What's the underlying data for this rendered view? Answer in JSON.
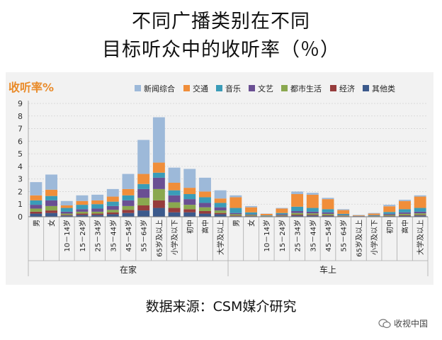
{
  "title_line1": "不同广播类别在不同",
  "title_line2": "目标听众中的收听率（％）",
  "source": "数据来源：CSM媒介研究",
  "watermark": "收视中国",
  "chart_data": {
    "type": "bar",
    "stacked": true,
    "ylabel": "收听率%",
    "ylim": [
      0,
      9
    ],
    "yticks": [
      0,
      1,
      2,
      3,
      4,
      5,
      6,
      7,
      8,
      9
    ],
    "grid": true,
    "legend_position": "top",
    "categories": [
      "男",
      "女",
      "10－14岁",
      "15－24岁",
      "25－34岁",
      "35－44岁",
      "45－54岁",
      "55－64岁",
      "65岁及以上",
      "小学及以下",
      "初中",
      "高中",
      "大学及以上",
      "男",
      "女",
      "10－14岁",
      "15－24岁",
      "25－34岁",
      "35－44岁",
      "45－54岁",
      "55－64岁",
      "65岁及以上",
      "小学及以下",
      "初中",
      "高中",
      "大学及以上"
    ],
    "groups": [
      {
        "label": "在家",
        "start": 0,
        "end": 12
      },
      {
        "label": "车上",
        "start": 13,
        "end": 25
      }
    ],
    "series": [
      {
        "name": "其他类",
        "color": "#3c5a8c",
        "values": [
          0.25,
          0.3,
          0.1,
          0.15,
          0.15,
          0.2,
          0.3,
          0.5,
          0.7,
          0.35,
          0.35,
          0.25,
          0.2,
          0.05,
          0.05,
          0.02,
          0.05,
          0.1,
          0.1,
          0.08,
          0.03,
          0.01,
          0.02,
          0.05,
          0.08,
          0.1
        ]
      },
      {
        "name": "经济",
        "color": "#963c3c",
        "values": [
          0.15,
          0.2,
          0.05,
          0.1,
          0.1,
          0.15,
          0.25,
          0.4,
          0.6,
          0.35,
          0.25,
          0.2,
          0.1,
          0.05,
          0.03,
          0.01,
          0.03,
          0.07,
          0.06,
          0.05,
          0.02,
          0.01,
          0.01,
          0.03,
          0.05,
          0.05
        ]
      },
      {
        "name": "都市生活",
        "color": "#8aa84f",
        "values": [
          0.25,
          0.35,
          0.1,
          0.15,
          0.15,
          0.2,
          0.3,
          0.6,
          0.9,
          0.45,
          0.35,
          0.3,
          0.2,
          0.1,
          0.07,
          0.02,
          0.05,
          0.13,
          0.11,
          0.1,
          0.05,
          0.01,
          0.02,
          0.07,
          0.1,
          0.12
        ]
      },
      {
        "name": "文艺",
        "color": "#6a4f93",
        "values": [
          0.3,
          0.45,
          0.15,
          0.2,
          0.25,
          0.3,
          0.45,
          0.7,
          0.9,
          0.55,
          0.45,
          0.35,
          0.25,
          0.1,
          0.05,
          0.02,
          0.07,
          0.15,
          0.13,
          0.12,
          0.05,
          0.02,
          0.03,
          0.08,
          0.12,
          0.13
        ]
      },
      {
        "name": "音乐",
        "color": "#3a9cb8",
        "values": [
          0.35,
          0.35,
          0.3,
          0.35,
          0.35,
          0.35,
          0.4,
          0.4,
          0.4,
          0.4,
          0.4,
          0.45,
          0.35,
          0.4,
          0.15,
          0.04,
          0.1,
          0.35,
          0.3,
          0.25,
          0.08,
          0.02,
          0.05,
          0.15,
          0.25,
          0.3
        ]
      },
      {
        "name": "交通",
        "color": "#f08e3a",
        "values": [
          0.4,
          0.5,
          0.2,
          0.3,
          0.3,
          0.4,
          0.5,
          0.8,
          0.8,
          0.6,
          0.5,
          0.45,
          0.35,
          0.85,
          0.4,
          0.12,
          0.35,
          1.0,
          1.05,
          0.8,
          0.3,
          0.05,
          0.12,
          0.45,
          0.65,
          0.9
        ]
      },
      {
        "name": "新闻综合",
        "color": "#9db9d9",
        "values": [
          1.05,
          1.2,
          0.35,
          0.45,
          0.45,
          0.6,
          1.2,
          2.7,
          3.6,
          1.2,
          1.5,
          1.1,
          0.65,
          0.15,
          0.1,
          0.02,
          0.05,
          0.2,
          0.15,
          0.1,
          0.07,
          0.03,
          0.05,
          0.12,
          0.1,
          0.1
        ]
      }
    ],
    "legend_order": [
      "新闻综合",
      "交通",
      "音乐",
      "文艺",
      "都市生活",
      "经济",
      "其他类"
    ]
  }
}
